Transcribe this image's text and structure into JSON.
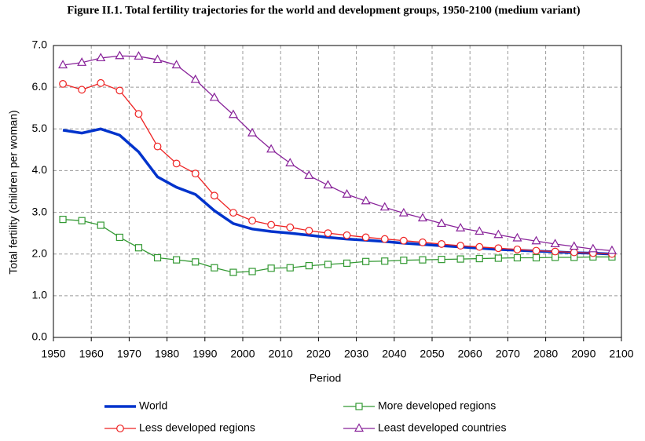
{
  "chart_data": {
    "type": "line",
    "title": "Figure II.1. Total fertility trajectories for the world and development groups, 1950-2100 (medium variant)",
    "x_label": "Period",
    "y_label": "Total fertility (children per woman)",
    "x": [
      1952.5,
      1957.5,
      1962.5,
      1967.5,
      1972.5,
      1977.5,
      1982.5,
      1987.5,
      1992.5,
      1997.5,
      2002.5,
      2007.5,
      2012.5,
      2017.5,
      2022.5,
      2027.5,
      2032.5,
      2037.5,
      2042.5,
      2047.5,
      2052.5,
      2057.5,
      2062.5,
      2067.5,
      2072.5,
      2077.5,
      2082.5,
      2087.5,
      2092.5,
      2097.5
    ],
    "xlim": [
      1950,
      2100
    ],
    "xticks": [
      1950,
      1960,
      1970,
      1980,
      1990,
      2000,
      2010,
      2020,
      2030,
      2040,
      2050,
      2060,
      2070,
      2080,
      2090,
      2100
    ],
    "ylim": [
      0,
      7
    ],
    "yticks": [
      {
        "value": 0,
        "label": "0.0"
      },
      {
        "value": 1,
        "label": "1.0"
      },
      {
        "value": 2,
        "label": "2.0"
      },
      {
        "value": 3,
        "label": "3.0"
      },
      {
        "value": 4,
        "label": "4.0"
      },
      {
        "value": 5,
        "label": "5.0"
      },
      {
        "value": 6,
        "label": "6.0"
      },
      {
        "value": 7,
        "label": "7.0"
      }
    ],
    "grid": true,
    "series": [
      {
        "name": "World",
        "color": "#0033cc",
        "marker": "none",
        "values": [
          4.97,
          4.9,
          5.0,
          4.85,
          4.45,
          3.85,
          3.6,
          3.43,
          3.04,
          2.73,
          2.6,
          2.54,
          2.5,
          2.45,
          2.4,
          2.36,
          2.33,
          2.3,
          2.26,
          2.23,
          2.2,
          2.17,
          2.14,
          2.11,
          2.09,
          2.07,
          2.05,
          2.03,
          2.02,
          2.0
        ]
      },
      {
        "name": "More developed regions",
        "color": "#339933",
        "marker": "square",
        "values": [
          2.83,
          2.8,
          2.69,
          2.4,
          2.15,
          1.91,
          1.86,
          1.81,
          1.67,
          1.56,
          1.58,
          1.66,
          1.67,
          1.72,
          1.75,
          1.78,
          1.82,
          1.83,
          1.85,
          1.86,
          1.87,
          1.88,
          1.89,
          1.9,
          1.91,
          1.91,
          1.92,
          1.92,
          1.93,
          1.93
        ]
      },
      {
        "name": "Less developed regions",
        "color": "#ee2222",
        "marker": "circle",
        "values": [
          6.08,
          5.94,
          6.1,
          5.92,
          5.36,
          4.58,
          4.17,
          3.93,
          3.4,
          2.99,
          2.8,
          2.7,
          2.64,
          2.56,
          2.5,
          2.45,
          2.4,
          2.36,
          2.32,
          2.28,
          2.24,
          2.2,
          2.17,
          2.14,
          2.11,
          2.08,
          2.06,
          2.04,
          2.02,
          2.0
        ]
      },
      {
        "name": "Least developed countries",
        "color": "#882299",
        "marker": "triangle",
        "values": [
          6.53,
          6.59,
          6.7,
          6.75,
          6.74,
          6.66,
          6.53,
          6.18,
          5.75,
          5.34,
          4.9,
          4.51,
          4.18,
          3.88,
          3.65,
          3.43,
          3.27,
          3.12,
          2.98,
          2.86,
          2.73,
          2.62,
          2.54,
          2.46,
          2.38,
          2.31,
          2.24,
          2.18,
          2.12,
          2.08
        ]
      }
    ]
  }
}
